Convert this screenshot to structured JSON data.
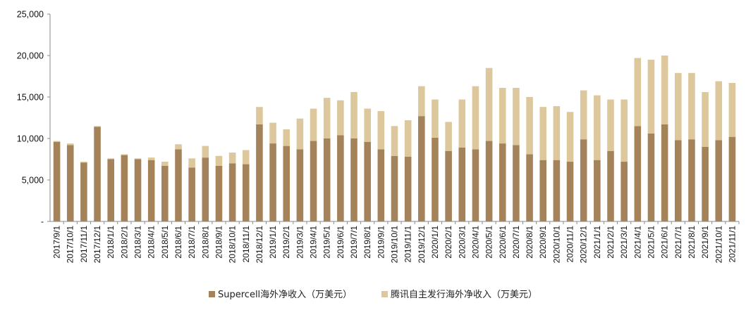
{
  "chart_data": {
    "type": "bar",
    "stacked": true,
    "title": "",
    "xlabel": "",
    "ylabel": "",
    "ylim": [
      0,
      25000
    ],
    "yticks": [
      0,
      5000,
      10000,
      15000,
      20000,
      25000
    ],
    "ytick_labels": [
      "-",
      "5,000",
      "10,000",
      "15,000",
      "20,000",
      "25,000"
    ],
    "grid": false,
    "legend_position": "bottom-center",
    "categories": [
      "2017/9/1",
      "2017/10/1",
      "2017/11/1",
      "2017/12/1",
      "2018/1/1",
      "2018/2/1",
      "2018/3/1",
      "2018/4/1",
      "2018/5/1",
      "2018/6/1",
      "2018/7/1",
      "2018/8/1",
      "2018/9/1",
      "2018/10/1",
      "2018/11/1",
      "2018/12/1",
      "2019/1/1",
      "2019/2/1",
      "2019/3/1",
      "2019/4/1",
      "2019/5/1",
      "2019/6/1",
      "2019/7/1",
      "2019/8/1",
      "2019/9/1",
      "2019/10/1",
      "2019/11/1",
      "2019/12/1",
      "2020/1/1",
      "2020/2/1",
      "2020/3/1",
      "2020/4/1",
      "2020/5/1",
      "2020/6/1",
      "2020/7/1",
      "2020/8/1",
      "2020/9/1",
      "2020/10/1",
      "2020/11/1",
      "2020/12/1",
      "2021/1/1",
      "2021/2/1",
      "2021/3/1",
      "2021/4/1",
      "2021/5/1",
      "2021/6/1",
      "2021/7/1",
      "2021/8/1",
      "2021/9/1",
      "2021/10/1",
      "2021/11/1"
    ],
    "series": [
      {
        "name": "Supercell海外净收入（万美元）",
        "color": "#a5835a",
        "values": [
          9600,
          9200,
          7100,
          11400,
          7500,
          8000,
          7500,
          7400,
          6700,
          8700,
          6500,
          7700,
          6700,
          7000,
          6900,
          11700,
          9400,
          9100,
          8700,
          9700,
          10000,
          10400,
          10000,
          9600,
          8700,
          7900,
          7800,
          12700,
          10100,
          8500,
          8900,
          8700,
          9700,
          9400,
          9200,
          8100,
          7400,
          7400,
          7200,
          9900,
          7400,
          8500,
          7200,
          11500,
          10600,
          11700,
          9800,
          9900,
          9000,
          9800,
          10200
        ]
      },
      {
        "name": "腾讯自主发行海外净收入（万美元）",
        "color": "#dcc89c",
        "values": [
          100,
          200,
          100,
          100,
          100,
          100,
          100,
          300,
          500,
          600,
          1100,
          1400,
          1200,
          1300,
          1700,
          2100,
          2500,
          2000,
          3700,
          3900,
          4900,
          4200,
          5600,
          4000,
          4600,
          3600,
          4400,
          3600,
          4600,
          3500,
          5800,
          7600,
          8800,
          6700,
          6900,
          6900,
          6400,
          6500,
          6000,
          5900,
          7800,
          6200,
          7500,
          8200,
          8900,
          8300,
          8100,
          8000,
          6600,
          7100,
          6500
        ]
      }
    ]
  }
}
